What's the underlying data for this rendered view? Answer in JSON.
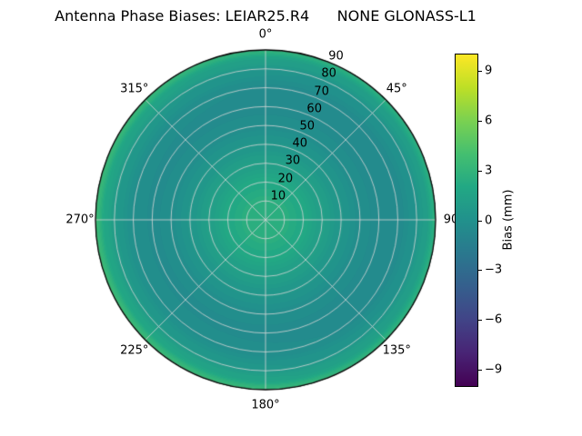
{
  "chart_data": {
    "type": "heatmap",
    "projection": "polar",
    "title": "Antenna Phase Biases: LEIAR25.R4      NONE GLONASS-L1",
    "angular_axis": {
      "description": "azimuth, 0 at top, clockwise",
      "tick_values": [
        0,
        45,
        90,
        135,
        180,
        225,
        270,
        315
      ],
      "tick_labels": [
        "0°",
        "45°",
        "90",
        "135°",
        "180°",
        "225°",
        "270°",
        "315°"
      ]
    },
    "radial_axis": {
      "description": "zenith angle",
      "tick_values": [
        10,
        20,
        30,
        40,
        50,
        60,
        70,
        80,
        90
      ],
      "max": 90,
      "label_azimuth_deg": 22.5
    },
    "values": {
      "zenith_deg": [
        0,
        10,
        20,
        30,
        40,
        50,
        60,
        70,
        78,
        84,
        90
      ],
      "bias_mm": [
        2.6,
        2.45,
        2.0,
        1.2,
        0.4,
        -0.2,
        -0.5,
        -0.35,
        0.3,
        1.3,
        3.0
      ]
    },
    "azimuthal_rim_variation": {
      "amplitude_mm": 0.5,
      "peak_azimuth_deg": 250,
      "start_zenith_deg": 55
    },
    "level_step_mm": 0.25,
    "grid": true,
    "colorbar": {
      "label": "Bias (mm)",
      "tick_values": [
        9,
        6,
        3,
        0,
        -3,
        -6,
        -9
      ],
      "tick_labels": [
        "9",
        "6",
        "3",
        "0",
        "−3",
        "−6",
        "−9"
      ],
      "vmin": -10,
      "vmax": 10,
      "colormap": "viridis"
    }
  },
  "colors": {
    "background": "#ffffff",
    "grid": "#d6d6d6",
    "outline": "#000000",
    "text": "#000000",
    "viridis_stops": [
      [
        0.0,
        68,
        1,
        84
      ],
      [
        0.1,
        72,
        36,
        117
      ],
      [
        0.2,
        65,
        68,
        135
      ],
      [
        0.3,
        53,
        95,
        141
      ],
      [
        0.4,
        42,
        120,
        142
      ],
      [
        0.5,
        33,
        145,
        140
      ],
      [
        0.6,
        34,
        168,
        132
      ],
      [
        0.7,
        68,
        191,
        112
      ],
      [
        0.8,
        122,
        209,
        81
      ],
      [
        0.9,
        189,
        223,
        38
      ],
      [
        1.0,
        253,
        231,
        37
      ]
    ]
  }
}
